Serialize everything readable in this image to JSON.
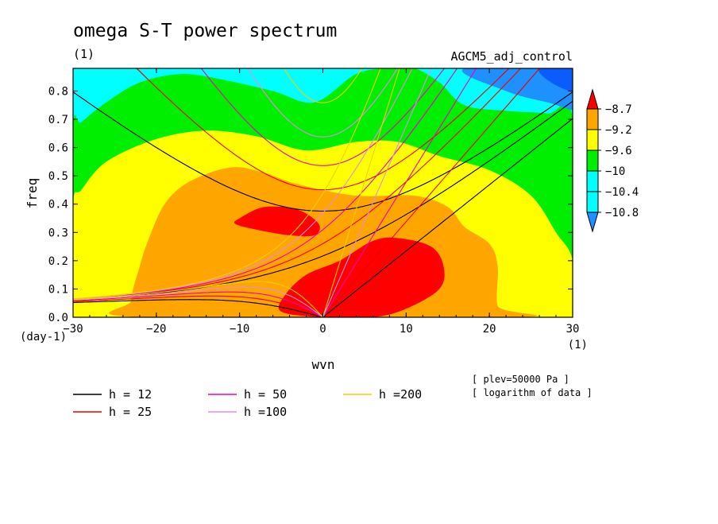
{
  "chart_data": {
    "type": "heatmap",
    "title": "omega S-T power spectrum",
    "subtitle_units": "(1)",
    "run_label": "AGCM5_adj_control",
    "xlabel": "wvn",
    "ylabel": "freq",
    "y_units": "(day-1)",
    "x_units": "(1)",
    "xlim": [
      -30,
      30
    ],
    "ylim": [
      0,
      0.88
    ],
    "x_ticks": [
      "−30",
      "−20",
      "−10",
      "0",
      "10",
      "20",
      "30"
    ],
    "x_tick_values": [
      -30,
      -20,
      -10,
      0,
      10,
      20,
      30
    ],
    "y_ticks": [
      "0.0",
      "0.1",
      "0.2",
      "0.3",
      "0.4",
      "0.5",
      "0.6",
      "0.7",
      "0.8"
    ],
    "y_tick_values": [
      0,
      0.1,
      0.2,
      0.3,
      0.4,
      0.5,
      0.6,
      0.7,
      0.8
    ],
    "colorbar": {
      "labels": [
        "−8.7",
        "−9.2",
        "−9.6",
        "−10",
        "−10.4",
        "−10.8"
      ],
      "levels": [
        -8.7,
        -9.2,
        -9.6,
        -10,
        -10.4,
        -10.8
      ],
      "colors": [
        "#ff0000",
        "#ffa500",
        "#ffff00",
        "#00ee00",
        "#00ffff",
        "#1e90ff"
      ]
    },
    "notes": [
      "[ plev=50000 Pa ]",
      "[ logarithm of data ]"
    ],
    "dispersion_curves": [
      {
        "label": "h = 12",
        "h": 12,
        "color": "#000000"
      },
      {
        "label": "h = 25",
        "h": 25,
        "color": "#ee0000"
      },
      {
        "label": "h = 50",
        "h": 50,
        "color": "#ee00bb"
      },
      {
        "label": "h =100",
        "h": 100,
        "color": "#e08ee0"
      },
      {
        "label": "h =200",
        "h": 200,
        "color": "#f0d000"
      }
    ],
    "contour_regions": [
      {
        "level": "cyan",
        "color": "#00ffff",
        "path_data": [
          [
            -30,
            0
          ],
          [
            30,
            0
          ],
          [
            30,
            0.88
          ],
          [
            -30,
            0.88
          ]
        ]
      },
      {
        "level": "green",
        "color": "#00ee00",
        "path_data": [
          [
            -30,
            0
          ],
          [
            30,
            0
          ],
          [
            30,
            0.7
          ],
          [
            27,
            0.72
          ],
          [
            22,
            0.73
          ],
          [
            17,
            0.75
          ],
          [
            14,
            0.83
          ],
          [
            11,
            0.88
          ],
          [
            8,
            0.88
          ],
          [
            4,
            0.86
          ],
          [
            -1,
            0.76
          ],
          [
            -6,
            0.8
          ],
          [
            -12,
            0.84
          ],
          [
            -17,
            0.86
          ],
          [
            -22,
            0.83
          ],
          [
            -26,
            0.76
          ],
          [
            -29,
            0.69
          ],
          [
            -30,
            0.66
          ]
        ]
      },
      {
        "level": "yellow",
        "color": "#ffff00",
        "path_data": [
          [
            -30,
            0.02
          ],
          [
            -29,
            0
          ],
          [
            30,
            0
          ],
          [
            30,
            0.2
          ],
          [
            28,
            0.3
          ],
          [
            25,
            0.43
          ],
          [
            20,
            0.52
          ],
          [
            14,
            0.57
          ],
          [
            9,
            0.62
          ],
          [
            4,
            0.62
          ],
          [
            -2,
            0.59
          ],
          [
            -8,
            0.64
          ],
          [
            -14,
            0.66
          ],
          [
            -20,
            0.63
          ],
          [
            -26,
            0.55
          ],
          [
            -29,
            0.45
          ],
          [
            -30,
            0.4
          ]
        ]
      },
      {
        "level": "orange",
        "color": "#ffa500",
        "path_data": [
          [
            -22,
            0
          ],
          [
            23,
            0
          ],
          [
            21,
            0.04
          ],
          [
            21,
            0.18
          ],
          [
            20,
            0.26
          ],
          [
            17,
            0.32
          ],
          [
            15,
            0.39
          ],
          [
            11,
            0.43
          ],
          [
            4,
            0.43
          ],
          [
            -3,
            0.47
          ],
          [
            -7,
            0.51
          ],
          [
            -11,
            0.53
          ],
          [
            -16,
            0.48
          ],
          [
            -19,
            0.4
          ],
          [
            -21,
            0.27
          ],
          [
            -22,
            0.18
          ],
          [
            -23,
            0.06
          ]
        ]
      },
      {
        "level": "red",
        "color": "#ff0000",
        "path_data": [
          [
            -5,
            0.02
          ],
          [
            0,
            0
          ],
          [
            6,
            0
          ],
          [
            10,
            0.03
          ],
          [
            14,
            0.1
          ],
          [
            14.5,
            0.18
          ],
          [
            13,
            0.25
          ],
          [
            9,
            0.28
          ],
          [
            6,
            0.27
          ],
          [
            2,
            0.2
          ],
          [
            -2,
            0.15
          ],
          [
            -4.5,
            0.08
          ]
        ]
      },
      {
        "level": "red",
        "color": "#ff0000",
        "path_data": [
          [
            -10,
            0.35
          ],
          [
            -7,
            0.39
          ],
          [
            -3,
            0.38
          ],
          [
            -0.5,
            0.33
          ],
          [
            -1,
            0.29
          ],
          [
            -4,
            0.29
          ],
          [
            -8,
            0.31
          ],
          [
            -10.5,
            0.33
          ]
        ]
      }
    ]
  },
  "legend_title": "",
  "colorbar_arrow_colors": {
    "top": "#ff0000",
    "bottom": "#1e90ff"
  }
}
